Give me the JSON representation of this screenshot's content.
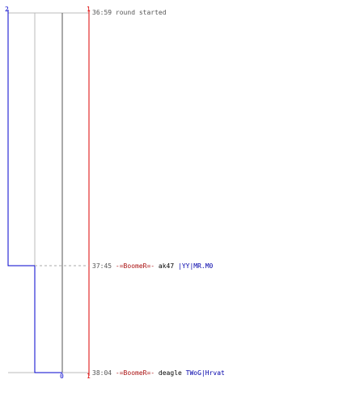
{
  "axis": {
    "left_top_count": "2",
    "right_top_count": "1",
    "bottom_mid_count": "0",
    "bottom_right_count": "1"
  },
  "colors": {
    "team_blue": "#0000cc",
    "team_red": "#dd0000",
    "grid": "#bbbbbb",
    "spine": "#555555",
    "dash": "#aaaaaa"
  },
  "events": [
    {
      "time": "36:59",
      "text": "round started",
      "killer": "",
      "weapon": "",
      "victim": ""
    },
    {
      "time": "37:45",
      "text": "",
      "killer": "-=BoomeR=-",
      "weapon": "ak47",
      "victim": "|YY|MR.M0"
    },
    {
      "time": "38:04",
      "text": "",
      "killer": "-=BoomeR=-",
      "weapon": "deagle",
      "victim": "TWoG|Hrvat"
    }
  ]
}
